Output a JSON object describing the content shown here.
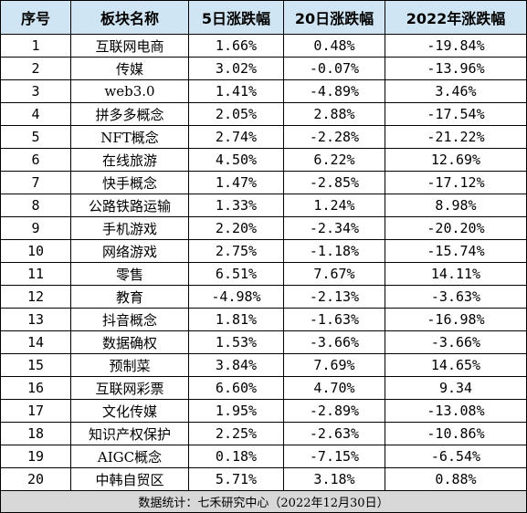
{
  "table": {
    "headers": [
      "序号",
      "板块名称",
      "5日涨跌幅",
      "20日涨跌幅",
      "2022年涨跌幅"
    ],
    "rows": [
      [
        "1",
        "互联网电商",
        "1.66%",
        "0.48%",
        "-19.84%"
      ],
      [
        "2",
        "传媒",
        "3.02%",
        "-0.07%",
        "-13.96%"
      ],
      [
        "3",
        "web3.0",
        "1.41%",
        "-4.89%",
        "3.46%"
      ],
      [
        "4",
        "拼多多概念",
        "2.05%",
        "2.88%",
        "-17.54%"
      ],
      [
        "5",
        "NFT概念",
        "2.74%",
        "-2.28%",
        "-21.22%"
      ],
      [
        "6",
        "在线旅游",
        "4.50%",
        "6.22%",
        "12.69%"
      ],
      [
        "7",
        "快手概念",
        "1.47%",
        "-2.85%",
        "-17.12%"
      ],
      [
        "8",
        "公路铁路运输",
        "1.33%",
        "1.24%",
        "8.98%"
      ],
      [
        "9",
        "手机游戏",
        "2.20%",
        "-2.34%",
        "-20.20%"
      ],
      [
        "10",
        "网络游戏",
        "2.75%",
        "-1.18%",
        "-15.74%"
      ],
      [
        "11",
        "零售",
        "6.51%",
        "7.67%",
        "14.11%"
      ],
      [
        "12",
        "教育",
        "-4.98%",
        "-2.13%",
        "-3.63%"
      ],
      [
        "13",
        "抖音概念",
        "1.81%",
        "-1.63%",
        "-16.98%"
      ],
      [
        "14",
        "数据确权",
        "1.53%",
        "-3.66%",
        "-3.66%"
      ],
      [
        "15",
        "预制菜",
        "3.84%",
        "7.69%",
        "14.65%"
      ],
      [
        "16",
        "互联网彩票",
        "6.60%",
        "4.70%",
        "9.34"
      ],
      [
        "17",
        "文化传媒",
        "1.95%",
        "-2.89%",
        "-13.08%"
      ],
      [
        "18",
        "知识产权保护",
        "2.25%",
        "-2.63%",
        "-10.86%"
      ],
      [
        "19",
        "AIGC概念",
        "0.18%",
        "-7.15%",
        "-6.54%"
      ],
      [
        "20",
        "中韩自贸区",
        "5.71%",
        "3.18%",
        "0.88%"
      ]
    ],
    "footer": "数据统计：七禾研究中心（2022年12月30日）"
  },
  "colors": {
    "header_bg": "#cfe5f3",
    "footer_bg": "#d8d8d8",
    "border": "#000000"
  }
}
